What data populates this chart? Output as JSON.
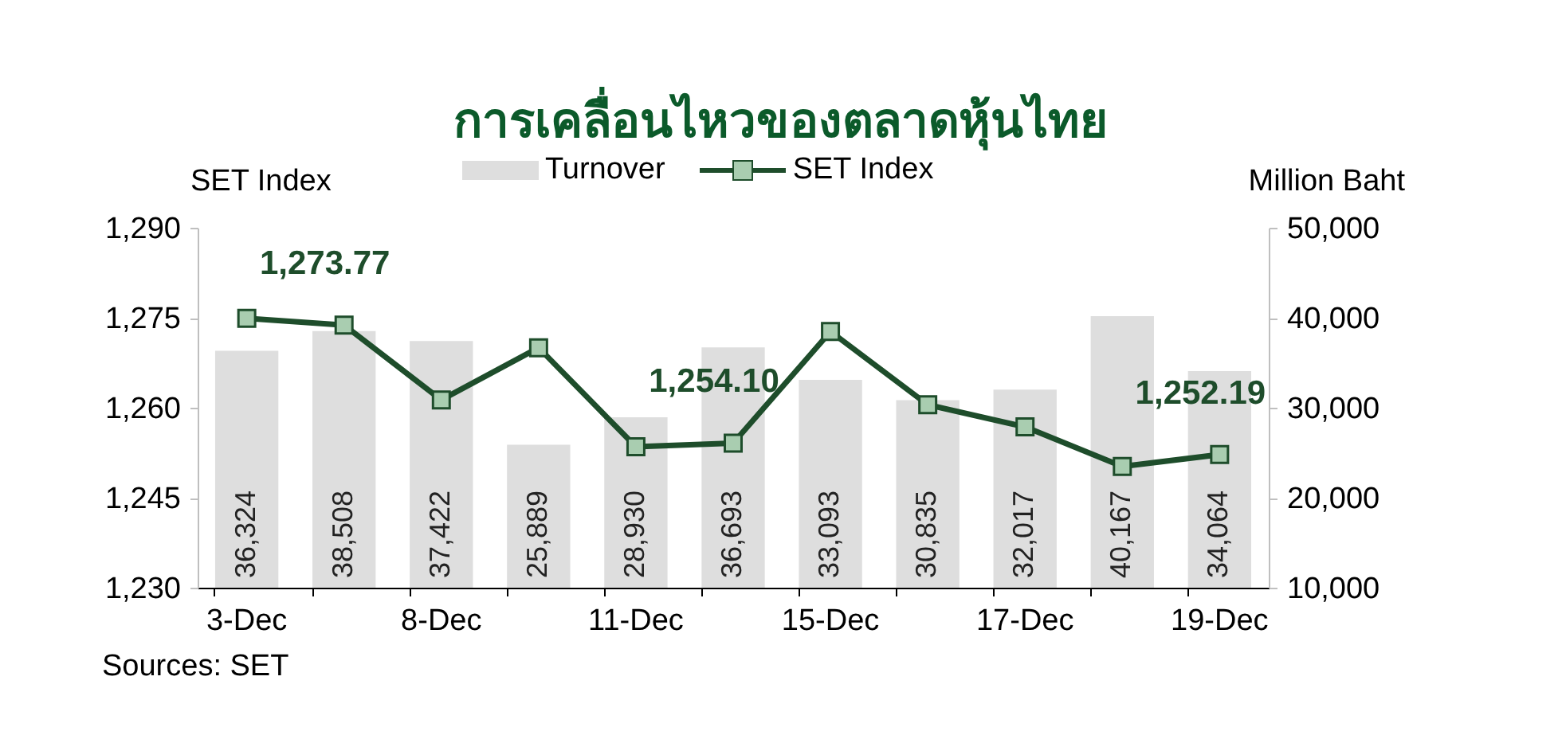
{
  "chart_data": {
    "type": "bar",
    "title": "การเคลื่อนไหวของตลาดหุ้นไทย",
    "ylabel": "SET Index",
    "y2label": "Million Baht",
    "categories": [
      "3-Dec",
      null,
      "8-Dec",
      null,
      "11-Dec",
      null,
      "15-Dec",
      null,
      "17-Dec",
      null,
      "19-Dec"
    ],
    "series": [
      {
        "name": "Turnover",
        "axis": "y2",
        "color": "#dedede",
        "values": [
          36324,
          38508,
          37422,
          25889,
          28930,
          36693,
          33093,
          30835,
          32017,
          40167,
          34064
        ],
        "value_labels": [
          "36,324",
          "38,508",
          "37,422",
          "25,889",
          "28,930",
          "36,693",
          "33,093",
          "30,835",
          "32,017",
          "40,167",
          "34,064"
        ]
      },
      {
        "name": "SET Index",
        "type": "line",
        "axis": "y",
        "color": "#1e4d2b",
        "values": [
          1274.9,
          1273.77,
          1261.3,
          1270.0,
          1253.5,
          1254.1,
          1272.7,
          1260.5,
          1256.8,
          1250.2,
          1252.19
        ],
        "value_labels": [
          null,
          "1,273.77",
          null,
          null,
          null,
          "1,254.10",
          null,
          null,
          null,
          null,
          "1,252.19"
        ]
      }
    ],
    "ylim": [
      1230,
      1290
    ],
    "yticks": [
      {
        "value": 1230,
        "label": "1,230"
      },
      {
        "value": 1245,
        "label": "1,245"
      },
      {
        "value": 1260,
        "label": "1,260"
      },
      {
        "value": 1275,
        "label": "1,275"
      },
      {
        "value": 1290,
        "label": "1,290"
      }
    ],
    "y2lim": [
      10000,
      50000
    ],
    "y2ticks": [
      {
        "value": 10000,
        "label": "10,000"
      },
      {
        "value": 20000,
        "label": "20,000"
      },
      {
        "value": 30000,
        "label": "30,000"
      },
      {
        "value": 40000,
        "label": "40,000"
      },
      {
        "value": 50000,
        "label": "50,000"
      }
    ],
    "marker": "square",
    "legend": "top",
    "grid": false,
    "annotations": [
      "Sources: SET"
    ]
  }
}
